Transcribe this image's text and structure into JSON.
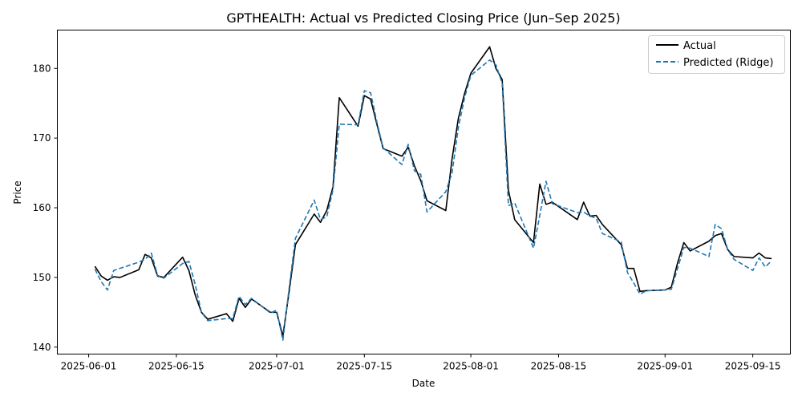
{
  "chart_data": {
    "type": "line",
    "title": "GPTHEALTH: Actual vs Predicted Closing Price (Jun–Sep 2025)",
    "xlabel": "Date",
    "ylabel": "Price",
    "xlim": [
      "2025-05-27",
      "2025-09-21"
    ],
    "ylim": [
      139,
      185.5
    ],
    "x_ticks": [
      "2025-06-01",
      "2025-06-15",
      "2025-07-01",
      "2025-07-15",
      "2025-08-01",
      "2025-08-15",
      "2025-09-01",
      "2025-09-15"
    ],
    "y_ticks": [
      140,
      150,
      160,
      170,
      180
    ],
    "grid": false,
    "legend_position": "top-right",
    "colors": {
      "actual": "#000000",
      "predicted": "#1f77b4"
    },
    "series": [
      {
        "name": "Actual",
        "style": "solid",
        "points": [
          [
            "2025-06-02",
            151.6
          ],
          [
            "2025-06-03",
            150.2
          ],
          [
            "2025-06-04",
            149.6
          ],
          [
            "2025-06-05",
            150.1
          ],
          [
            "2025-06-06",
            150.0
          ],
          [
            "2025-06-09",
            151.1
          ],
          [
            "2025-06-10",
            153.3
          ],
          [
            "2025-06-11",
            152.8
          ],
          [
            "2025-06-12",
            150.2
          ],
          [
            "2025-06-13",
            150.0
          ],
          [
            "2025-06-16",
            152.9
          ],
          [
            "2025-06-17",
            151.0
          ],
          [
            "2025-06-18",
            147.5
          ],
          [
            "2025-06-19",
            145.0
          ],
          [
            "2025-06-20",
            144.0
          ],
          [
            "2025-06-23",
            144.8
          ],
          [
            "2025-06-24",
            143.7
          ],
          [
            "2025-06-25",
            147.0
          ],
          [
            "2025-06-26",
            145.7
          ],
          [
            "2025-06-27",
            146.9
          ],
          [
            "2025-06-30",
            145.0
          ],
          [
            "2025-07-01",
            145.0
          ],
          [
            "2025-07-02",
            141.6
          ],
          [
            "2025-07-03",
            148.0
          ],
          [
            "2025-07-04",
            154.7
          ],
          [
            "2025-07-07",
            159.1
          ],
          [
            "2025-07-08",
            157.9
          ],
          [
            "2025-07-09",
            159.6
          ],
          [
            "2025-07-10",
            163.0
          ],
          [
            "2025-07-11",
            175.8
          ],
          [
            "2025-07-14",
            171.7
          ],
          [
            "2025-07-15",
            176.1
          ],
          [
            "2025-07-16",
            175.6
          ],
          [
            "2025-07-17",
            172.0
          ],
          [
            "2025-07-18",
            168.5
          ],
          [
            "2025-07-21",
            167.4
          ],
          [
            "2025-07-22",
            168.7
          ],
          [
            "2025-07-23",
            166.0
          ],
          [
            "2025-07-24",
            163.9
          ],
          [
            "2025-07-25",
            161.0
          ],
          [
            "2025-07-28",
            159.6
          ],
          [
            "2025-07-29",
            167.0
          ],
          [
            "2025-07-30",
            172.8
          ],
          [
            "2025-07-31",
            176.4
          ],
          [
            "2025-08-01",
            179.3
          ],
          [
            "2025-08-04",
            183.1
          ],
          [
            "2025-08-05",
            180.0
          ],
          [
            "2025-08-06",
            178.4
          ],
          [
            "2025-08-07",
            162.5
          ],
          [
            "2025-08-08",
            158.3
          ],
          [
            "2025-08-11",
            155.0
          ],
          [
            "2025-08-12",
            163.4
          ],
          [
            "2025-08-13",
            160.5
          ],
          [
            "2025-08-14",
            160.8
          ],
          [
            "2025-08-18",
            158.3
          ],
          [
            "2025-08-19",
            160.8
          ],
          [
            "2025-08-20",
            158.8
          ],
          [
            "2025-08-21",
            158.9
          ],
          [
            "2025-08-22",
            157.6
          ],
          [
            "2025-08-25",
            154.7
          ],
          [
            "2025-08-26",
            151.3
          ],
          [
            "2025-08-27",
            151.3
          ],
          [
            "2025-08-28",
            148.0
          ],
          [
            "2025-08-29",
            148.1
          ],
          [
            "2025-09-01",
            148.2
          ],
          [
            "2025-09-02",
            148.6
          ],
          [
            "2025-09-03",
            152.1
          ],
          [
            "2025-09-04",
            155.0
          ],
          [
            "2025-09-05",
            153.8
          ],
          [
            "2025-09-08",
            155.2
          ],
          [
            "2025-09-09",
            156.0
          ],
          [
            "2025-09-10",
            156.3
          ],
          [
            "2025-09-11",
            154.0
          ],
          [
            "2025-09-12",
            153.0
          ],
          [
            "2025-09-15",
            152.8
          ],
          [
            "2025-09-16",
            153.5
          ],
          [
            "2025-09-17",
            152.8
          ],
          [
            "2025-09-18",
            152.7
          ]
        ]
      },
      {
        "name": "Predicted (Ridge)",
        "style": "dashed",
        "points": [
          [
            "2025-06-02",
            151.2
          ],
          [
            "2025-06-03",
            149.4
          ],
          [
            "2025-06-04",
            148.2
          ],
          [
            "2025-06-05",
            151.0
          ],
          [
            "2025-06-06",
            151.3
          ],
          [
            "2025-06-09",
            152.2
          ],
          [
            "2025-06-10",
            152.6
          ],
          [
            "2025-06-11",
            153.5
          ],
          [
            "2025-06-12",
            150.3
          ],
          [
            "2025-06-13",
            149.9
          ],
          [
            "2025-06-16",
            152.0
          ],
          [
            "2025-06-17",
            152.3
          ],
          [
            "2025-06-18",
            149.0
          ],
          [
            "2025-06-19",
            145.0
          ],
          [
            "2025-06-20",
            143.8
          ],
          [
            "2025-06-23",
            144.1
          ],
          [
            "2025-06-24",
            144.1
          ],
          [
            "2025-06-25",
            147.3
          ],
          [
            "2025-06-26",
            146.1
          ],
          [
            "2025-06-27",
            147.0
          ],
          [
            "2025-06-30",
            144.9
          ],
          [
            "2025-07-01",
            145.3
          ],
          [
            "2025-07-02",
            141.0
          ],
          [
            "2025-07-03",
            148.5
          ],
          [
            "2025-07-04",
            155.6
          ],
          [
            "2025-07-07",
            161.1
          ],
          [
            "2025-07-08",
            158.3
          ],
          [
            "2025-07-09",
            158.7
          ],
          [
            "2025-07-10",
            162.6
          ],
          [
            "2025-07-11",
            172.0
          ],
          [
            "2025-07-14",
            171.9
          ],
          [
            "2025-07-15",
            176.8
          ],
          [
            "2025-07-16",
            176.5
          ],
          [
            "2025-07-17",
            172.3
          ],
          [
            "2025-07-18",
            168.6
          ],
          [
            "2025-07-21",
            166.2
          ],
          [
            "2025-07-22",
            169.1
          ],
          [
            "2025-07-23",
            165.3
          ],
          [
            "2025-07-24",
            164.8
          ],
          [
            "2025-07-25",
            159.4
          ],
          [
            "2025-07-28",
            162.3
          ],
          [
            "2025-07-29",
            165.0
          ],
          [
            "2025-07-30",
            171.5
          ],
          [
            "2025-07-31",
            175.8
          ],
          [
            "2025-08-01",
            179.0
          ],
          [
            "2025-08-04",
            181.2
          ],
          [
            "2025-08-05",
            180.5
          ],
          [
            "2025-08-06",
            177.9
          ],
          [
            "2025-08-07",
            160.3
          ],
          [
            "2025-08-08",
            160.7
          ],
          [
            "2025-08-11",
            154.2
          ],
          [
            "2025-08-12",
            158.9
          ],
          [
            "2025-08-13",
            163.8
          ],
          [
            "2025-08-14",
            160.6
          ],
          [
            "2025-08-18",
            159.3
          ],
          [
            "2025-08-19",
            159.4
          ],
          [
            "2025-08-20",
            158.8
          ],
          [
            "2025-08-21",
            158.5
          ],
          [
            "2025-08-22",
            156.3
          ],
          [
            "2025-08-25",
            155.1
          ],
          [
            "2025-08-26",
            150.7
          ],
          [
            "2025-08-27",
            149.2
          ],
          [
            "2025-08-28",
            147.6
          ],
          [
            "2025-08-29",
            148.1
          ],
          [
            "2025-09-01",
            148.2
          ],
          [
            "2025-09-02",
            148.3
          ],
          [
            "2025-09-03",
            151.3
          ],
          [
            "2025-09-04",
            154.3
          ],
          [
            "2025-09-05",
            154.2
          ],
          [
            "2025-09-08",
            153.0
          ],
          [
            "2025-09-09",
            157.6
          ],
          [
            "2025-09-10",
            157.0
          ],
          [
            "2025-09-11",
            154.0
          ],
          [
            "2025-09-12",
            152.6
          ],
          [
            "2025-09-15",
            151.0
          ],
          [
            "2025-09-16",
            152.8
          ],
          [
            "2025-09-17",
            151.5
          ],
          [
            "2025-09-18",
            152.4
          ]
        ]
      }
    ]
  }
}
